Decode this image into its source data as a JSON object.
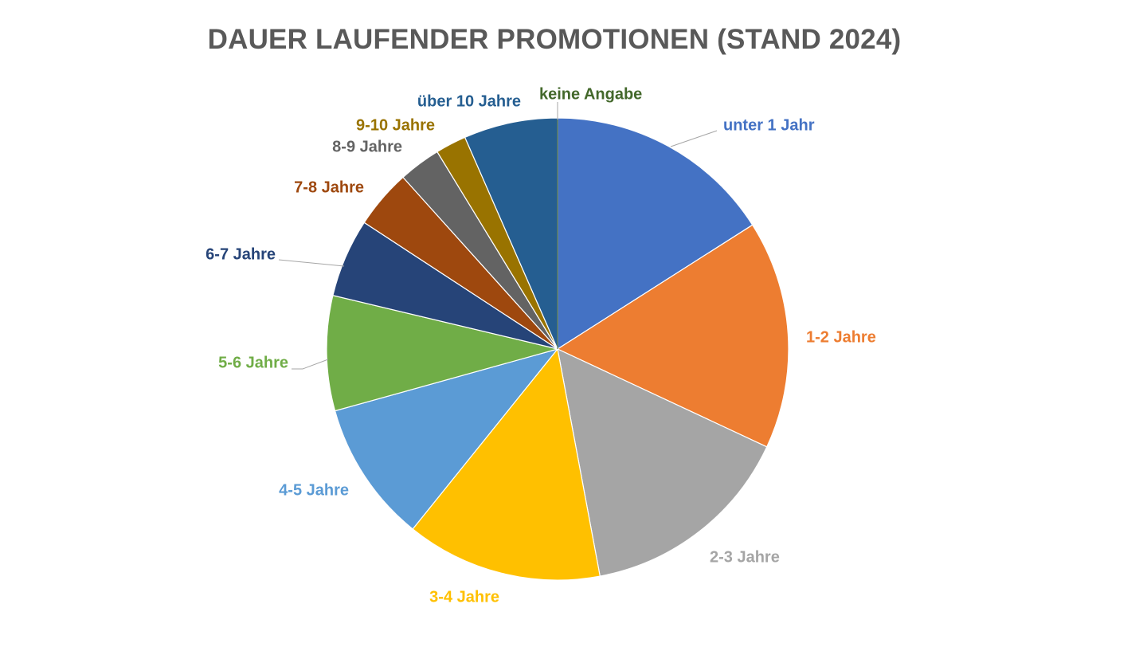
{
  "chart_data": {
    "type": "pie",
    "title": "DAUER LAUFENDER PROMOTIONEN (STAND 2024)",
    "slices": [
      {
        "label": "unter 1 Jahr",
        "value": 16.3,
        "color": "#4472C4"
      },
      {
        "label": "1-2 Jahre",
        "value": 16.3,
        "color": "#ED7D31"
      },
      {
        "label": "2-3 Jahre",
        "value": 15.4,
        "color": "#A5A5A5"
      },
      {
        "label": "3-4 Jahre",
        "value": 14.0,
        "color": "#FFC000"
      },
      {
        "label": "4-5 Jahre",
        "value": 10.1,
        "color": "#5B9BD5"
      },
      {
        "label": "5-6 Jahre",
        "value": 8.2,
        "color": "#70AD47"
      },
      {
        "label": "6-7 Jahre",
        "value": 5.6,
        "color": "#264478"
      },
      {
        "label": "7-8 Jahre",
        "value": 4.2,
        "color": "#9E480E"
      },
      {
        "label": "8-9 Jahre",
        "value": 3.0,
        "color": "#636363"
      },
      {
        "label": "9-10 Jahre",
        "value": 2.2,
        "color": "#997300"
      },
      {
        "label": "über 10 Jahre",
        "value": 6.7,
        "color": "#255E91"
      },
      {
        "label": "keine Angabe",
        "value": 0.0,
        "color": "#43682B"
      }
    ],
    "legend": "none"
  }
}
